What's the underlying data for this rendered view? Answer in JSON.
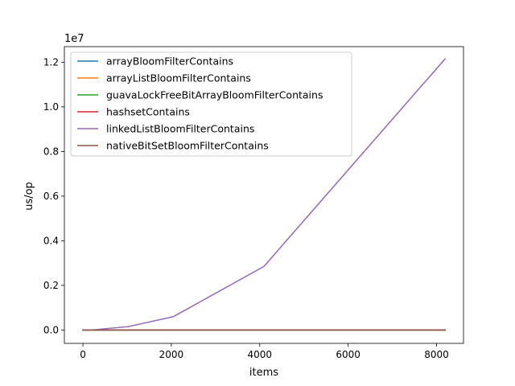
{
  "chart_data": {
    "type": "line",
    "title": "",
    "xlabel": "items",
    "ylabel": "us/op",
    "y_offset_label": "1e7",
    "xlim": [
      -420,
      8610
    ],
    "ylim": [
      -600000,
      12700000
    ],
    "y_scale_factor": 10000000,
    "x_ticks": [
      0,
      2000,
      4000,
      6000,
      8000
    ],
    "x_tick_labels": [
      "0",
      "2000",
      "4000",
      "6000",
      "8000"
    ],
    "y_ticks": [
      0,
      2000000,
      4000000,
      6000000,
      8000000,
      10000000,
      12000000
    ],
    "y_tick_labels": [
      "0.0",
      "0.2",
      "0.4",
      "0.6",
      "0.8",
      "1.0",
      "1.2"
    ],
    "grid": false,
    "legend_position": "top-left",
    "x": [
      1,
      256,
      1024,
      2048,
      4096,
      8192
    ],
    "series": [
      {
        "name": "arrayBloomFilterContains",
        "color": "#1f77b4",
        "values": [
          2,
          5,
          15,
          30,
          60,
          120
        ]
      },
      {
        "name": "arrayListBloomFilterContains",
        "color": "#ff7f0e",
        "values": [
          2,
          6,
          20,
          40,
          80,
          160
        ]
      },
      {
        "name": "guavaLockFreeBitArrayBloomFilterContains",
        "color": "#2ca02c",
        "values": [
          3,
          8,
          25,
          50,
          100,
          200
        ]
      },
      {
        "name": "hashsetContains",
        "color": "#d62728",
        "values": [
          1,
          3,
          10,
          20,
          40,
          80
        ]
      },
      {
        "name": "linkedListBloomFilterContains",
        "color": "#9467bd",
        "values": [
          100,
          10000,
          150000,
          600000,
          2850000,
          12150000
        ]
      },
      {
        "name": "nativeBitSetBloomFilterContains",
        "color": "#8c564b",
        "values": [
          2,
          5,
          15,
          30,
          60,
          120
        ]
      }
    ]
  }
}
